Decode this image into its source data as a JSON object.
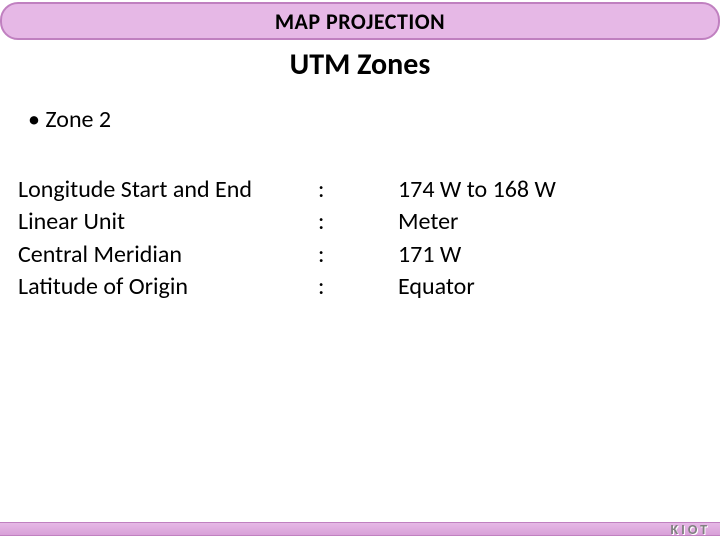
{
  "header": {
    "title": "MAP PROJECTION",
    "band_bg": "#e6b8e6",
    "band_border": "#c080c0"
  },
  "subtitle": "UTM Zones",
  "bullet": {
    "item": "Zone 2"
  },
  "details": {
    "rows": [
      {
        "label": "Longitude Start and End",
        "colon": ":",
        "value": "174 W to 168 W"
      },
      {
        "label": "Linear Unit",
        "colon": ":",
        "value": "Meter"
      },
      {
        "label": "Central Meridian",
        "colon": ":",
        "value": "171 W"
      },
      {
        "label": "Latitude of Origin",
        "colon": ":",
        "value": "Equator"
      }
    ]
  },
  "footer": {
    "logo_text": "KIOT"
  },
  "colors": {
    "background": "#ffffff",
    "text": "#000000",
    "footer_text": "#808080"
  },
  "typography": {
    "header_fontsize": 22,
    "subtitle_fontsize": 30,
    "body_fontsize": 24,
    "footer_fontsize": 14
  }
}
